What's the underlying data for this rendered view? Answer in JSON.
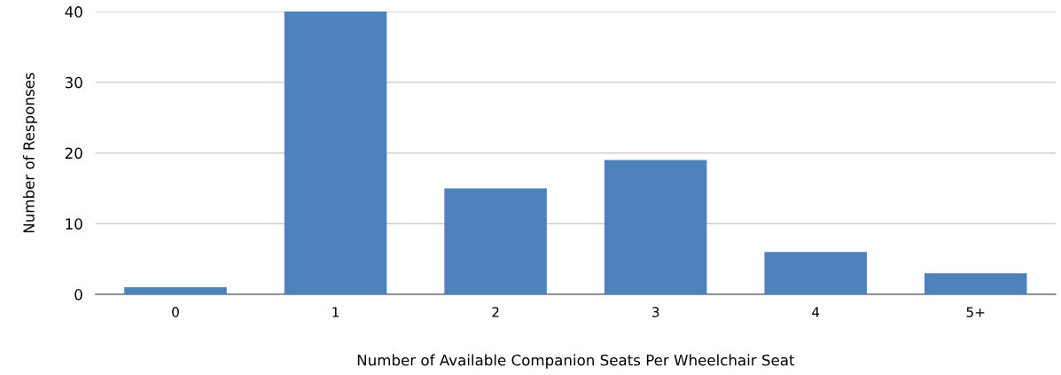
{
  "chart_data": {
    "type": "bar",
    "xlabel": "Number of Available Companion Seats Per Wheelchair Seat",
    "ylabel": "Number of Responses",
    "categories": [
      "0",
      "1",
      "2",
      "3",
      "4",
      "5+"
    ],
    "values": [
      1,
      40,
      15,
      19,
      6,
      3
    ],
    "color": "#4f81bd",
    "ylim": [
      0,
      40
    ],
    "yticks": [
      0,
      10,
      20,
      30,
      40
    ],
    "grid": "y",
    "legend": false
  }
}
